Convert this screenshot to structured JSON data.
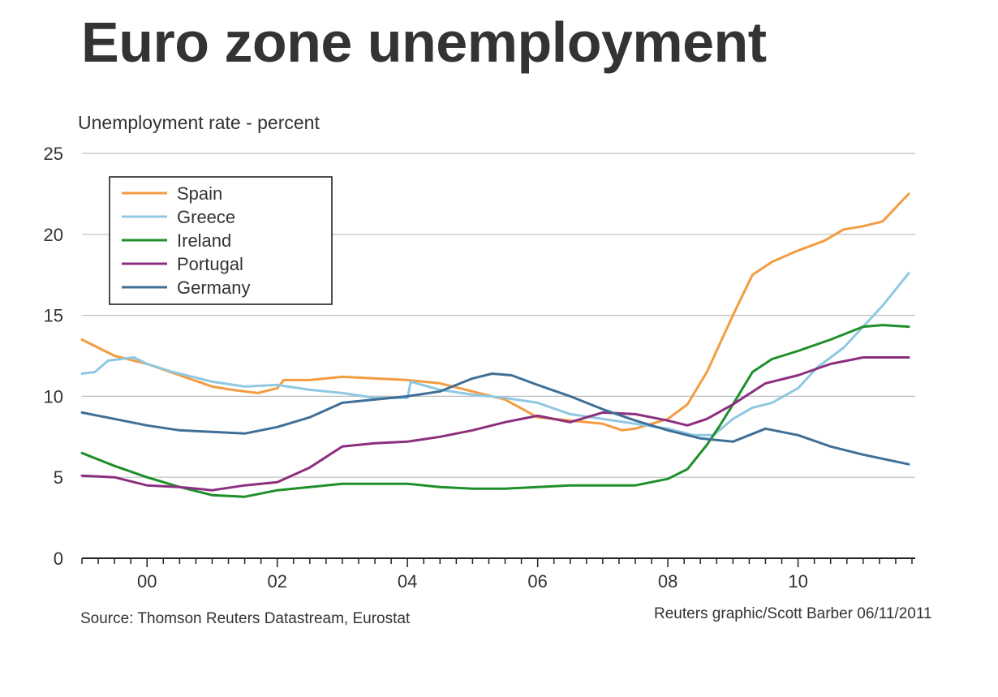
{
  "title": "Euro zone unemployment",
  "source": "Source: Thomson Reuters Datastream, Eurostat",
  "credit": "Reuters graphic/Scott Barber 06/11/2011",
  "chart_data": {
    "type": "line",
    "title": "Euro zone unemployment",
    "xlabel": "",
    "ylabel": "Unemployment rate - percent",
    "xlim": [
      1999.0,
      2011.8
    ],
    "ylim": [
      0,
      25
    ],
    "yticks": [
      0,
      5,
      10,
      15,
      20,
      25
    ],
    "xticks": [
      2000,
      2002,
      2004,
      2006,
      2008,
      2010
    ],
    "xtick_labels": [
      "00",
      "02",
      "04",
      "06",
      "08",
      "10"
    ],
    "grid": "horizontal",
    "legend_position": "top-left",
    "series": [
      {
        "name": "Spain",
        "color": "#f39c41",
        "x": [
          1999.0,
          1999.5,
          2000.0,
          2000.5,
          2001.0,
          2001.3,
          2001.7,
          2002.0,
          2002.1,
          2002.5,
          2003.0,
          2003.5,
          2004.0,
          2004.5,
          2005.0,
          2005.5,
          2006.0,
          2006.5,
          2007.0,
          2007.3,
          2007.5,
          2008.0,
          2008.3,
          2008.6,
          2009.0,
          2009.3,
          2009.6,
          2010.0,
          2010.4,
          2010.7,
          2011.0,
          2011.3,
          2011.7
        ],
        "y": [
          13.5,
          12.5,
          12.0,
          11.3,
          10.6,
          10.4,
          10.2,
          10.5,
          11.0,
          11.0,
          11.2,
          11.1,
          11.0,
          10.8,
          10.3,
          9.8,
          8.7,
          8.5,
          8.3,
          7.9,
          8.0,
          8.6,
          9.5,
          11.5,
          15.0,
          17.5,
          18.3,
          19.0,
          19.6,
          20.3,
          20.5,
          20.8,
          22.5
        ]
      },
      {
        "name": "Greece",
        "color": "#8fc8e2",
        "x": [
          1999.0,
          1999.2,
          1999.4,
          1999.8,
          2000.0,
          2000.4,
          2001.0,
          2001.5,
          2002.0,
          2002.5,
          2003.0,
          2003.5,
          2004.0,
          2004.05,
          2004.5,
          2005.0,
          2005.5,
          2006.0,
          2006.5,
          2007.0,
          2007.5,
          2008.0,
          2008.4,
          2008.7,
          2009.0,
          2009.3,
          2009.6,
          2010.0,
          2010.3,
          2010.7,
          2011.0,
          2011.3,
          2011.7
        ],
        "y": [
          11.4,
          11.5,
          12.2,
          12.4,
          12.0,
          11.5,
          10.9,
          10.6,
          10.7,
          10.4,
          10.2,
          9.9,
          9.9,
          10.9,
          10.4,
          10.1,
          9.9,
          9.6,
          8.9,
          8.6,
          8.3,
          8.0,
          7.6,
          7.6,
          8.6,
          9.3,
          9.6,
          10.5,
          11.8,
          13.0,
          14.3,
          15.6,
          17.6
        ]
      },
      {
        "name": "Ireland",
        "color": "#1e8f2a",
        "x": [
          1999.0,
          1999.5,
          2000.0,
          2000.5,
          2001.0,
          2001.5,
          2002.0,
          2002.5,
          2003.0,
          2003.5,
          2004.0,
          2004.5,
          2005.0,
          2005.5,
          2006.0,
          2006.5,
          2007.0,
          2007.5,
          2008.0,
          2008.3,
          2008.6,
          2008.8,
          2009.0,
          2009.3,
          2009.6,
          2010.0,
          2010.5,
          2011.0,
          2011.3,
          2011.7
        ],
        "y": [
          6.5,
          5.7,
          5.0,
          4.4,
          3.9,
          3.8,
          4.2,
          4.4,
          4.6,
          4.6,
          4.6,
          4.4,
          4.3,
          4.3,
          4.4,
          4.5,
          4.5,
          4.5,
          4.9,
          5.5,
          7.0,
          8.2,
          9.5,
          11.5,
          12.3,
          12.8,
          13.5,
          14.3,
          14.4,
          14.3
        ]
      },
      {
        "name": "Portugal",
        "color": "#8b2f7f",
        "x": [
          1999.0,
          1999.5,
          2000.0,
          2000.5,
          2001.0,
          2001.5,
          2002.0,
          2002.5,
          2003.0,
          2003.5,
          2004.0,
          2004.5,
          2005.0,
          2005.5,
          2006.0,
          2006.5,
          2007.0,
          2007.5,
          2008.0,
          2008.3,
          2008.6,
          2009.0,
          2009.5,
          2010.0,
          2010.5,
          2011.0,
          2011.7
        ],
        "y": [
          5.1,
          5.0,
          4.5,
          4.4,
          4.2,
          4.5,
          4.7,
          5.6,
          6.9,
          7.1,
          7.2,
          7.5,
          7.9,
          8.4,
          8.8,
          8.4,
          9.0,
          8.9,
          8.5,
          8.2,
          8.6,
          9.5,
          10.8,
          11.3,
          12.0,
          12.4,
          12.4
        ]
      },
      {
        "name": "Germany",
        "color": "#3f6f97",
        "x": [
          1999.0,
          1999.5,
          2000.0,
          2000.5,
          2001.0,
          2001.5,
          2002.0,
          2002.5,
          2003.0,
          2003.5,
          2004.0,
          2004.5,
          2005.0,
          2005.3,
          2005.6,
          2006.0,
          2006.5,
          2007.0,
          2007.5,
          2008.0,
          2008.5,
          2009.0,
          2009.5,
          2010.0,
          2010.5,
          2011.0,
          2011.7
        ],
        "y": [
          9.0,
          8.6,
          8.2,
          7.9,
          7.8,
          7.7,
          8.1,
          8.7,
          9.6,
          9.8,
          10.0,
          10.3,
          11.1,
          11.4,
          11.3,
          10.7,
          10.0,
          9.2,
          8.5,
          7.9,
          7.4,
          7.2,
          8.0,
          7.6,
          6.9,
          6.4,
          5.8
        ]
      }
    ]
  }
}
